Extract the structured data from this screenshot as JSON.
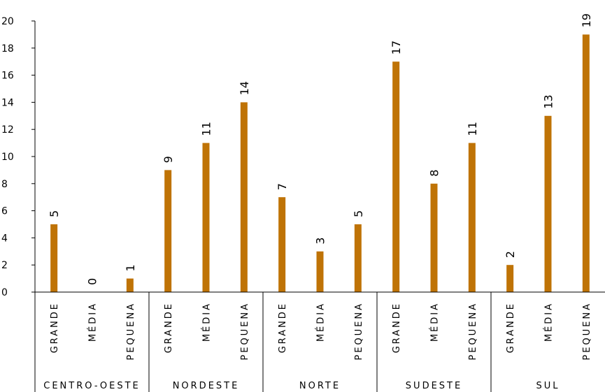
{
  "chart_data": {
    "type": "bar",
    "ylim": [
      0,
      20
    ],
    "yticks": [
      0,
      2,
      4,
      6,
      8,
      10,
      12,
      14,
      16,
      18,
      20
    ],
    "bar_color": "#BF7306",
    "grid": false,
    "groups": [
      {
        "label": "CENTRO-OESTE",
        "categories": [
          "GRANDE",
          "MÉDIA",
          "PEQUENA"
        ],
        "values": [
          5,
          0,
          1
        ]
      },
      {
        "label": "NORDESTE",
        "categories": [
          "GRANDE",
          "MÉDIA",
          "PEQUENA"
        ],
        "values": [
          9,
          11,
          14
        ]
      },
      {
        "label": "NORTE",
        "categories": [
          "GRANDE",
          "MÉDIA",
          "PEQUENA"
        ],
        "values": [
          7,
          3,
          5
        ]
      },
      {
        "label": "SUDESTE",
        "categories": [
          "GRANDE",
          "MÉDIA",
          "PEQUENA"
        ],
        "values": [
          17,
          8,
          11
        ]
      },
      {
        "label": "SUL",
        "categories": [
          "GRANDE",
          "MÉDIA",
          "PEQUENA"
        ],
        "values": [
          2,
          13,
          19
        ]
      }
    ]
  }
}
